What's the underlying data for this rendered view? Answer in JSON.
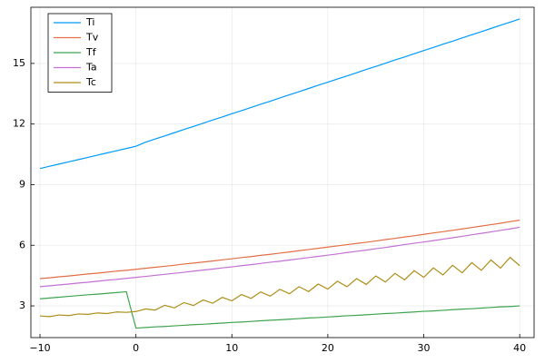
{
  "chart_data": {
    "type": "line",
    "x": [
      -10,
      -9,
      -8,
      -7,
      -6,
      -5,
      -4,
      -3,
      -2,
      -1,
      0,
      1,
      2,
      3,
      4,
      5,
      6,
      7,
      8,
      9,
      10,
      11,
      12,
      13,
      14,
      15,
      16,
      17,
      18,
      19,
      20,
      21,
      22,
      23,
      24,
      25,
      26,
      27,
      28,
      29,
      30,
      31,
      32,
      33,
      34,
      35,
      36,
      37,
      38,
      39,
      40
    ],
    "series": [
      {
        "name": "Ti",
        "color": "#009af9",
        "values": [
          9.8,
          9.91,
          10.02,
          10.13,
          10.24,
          10.35,
          10.46,
          10.57,
          10.68,
          10.79,
          10.9,
          11.1,
          11.26,
          11.41,
          11.57,
          11.73,
          11.88,
          12.04,
          12.2,
          12.35,
          12.51,
          12.66,
          12.82,
          12.98,
          13.13,
          13.29,
          13.45,
          13.6,
          13.76,
          13.92,
          14.07,
          14.23,
          14.38,
          14.54,
          14.7,
          14.85,
          15.01,
          15.17,
          15.32,
          15.48,
          15.64,
          15.79,
          15.95,
          16.1,
          16.26,
          16.42,
          16.57,
          16.73,
          16.89,
          17.04,
          17.2
        ]
      },
      {
        "name": "Tv",
        "color": "#e26f46",
        "values": [
          4.35,
          4.39,
          4.44,
          4.48,
          4.53,
          4.58,
          4.62,
          4.67,
          4.72,
          4.76,
          4.81,
          4.86,
          4.91,
          4.96,
          5.01,
          5.07,
          5.12,
          5.17,
          5.22,
          5.28,
          5.33,
          5.39,
          5.44,
          5.5,
          5.55,
          5.61,
          5.67,
          5.73,
          5.79,
          5.85,
          5.91,
          5.97,
          6.03,
          6.09,
          6.15,
          6.21,
          6.28,
          6.34,
          6.41,
          6.47,
          6.54,
          6.61,
          6.67,
          6.74,
          6.81,
          6.88,
          6.95,
          7.02,
          7.09,
          7.17,
          7.24
        ]
      },
      {
        "name": "Tf",
        "color": "#3ea44e",
        "values": [
          3.35,
          3.39,
          3.43,
          3.47,
          3.51,
          3.55,
          3.58,
          3.62,
          3.66,
          3.7,
          1.9,
          1.93,
          1.96,
          1.98,
          2.01,
          2.04,
          2.07,
          2.09,
          2.12,
          2.15,
          2.18,
          2.2,
          2.23,
          2.26,
          2.29,
          2.31,
          2.34,
          2.37,
          2.4,
          2.42,
          2.45,
          2.48,
          2.51,
          2.53,
          2.56,
          2.59,
          2.62,
          2.64,
          2.67,
          2.7,
          2.73,
          2.75,
          2.78,
          2.81,
          2.84,
          2.86,
          2.89,
          2.92,
          2.95,
          2.97,
          3.0
        ]
      },
      {
        "name": "Ta",
        "color": "#c271d2",
        "values": [
          3.95,
          3.99,
          4.04,
          4.08,
          4.13,
          4.17,
          4.22,
          4.27,
          4.31,
          4.36,
          4.41,
          4.46,
          4.51,
          4.56,
          4.61,
          4.66,
          4.72,
          4.77,
          4.82,
          4.88,
          4.93,
          4.99,
          5.04,
          5.1,
          5.16,
          5.21,
          5.27,
          5.33,
          5.39,
          5.45,
          5.51,
          5.57,
          5.64,
          5.7,
          5.76,
          5.83,
          5.89,
          5.96,
          6.03,
          6.1,
          6.16,
          6.23,
          6.3,
          6.37,
          6.44,
          6.52,
          6.59,
          6.66,
          6.74,
          6.81,
          6.89
        ]
      },
      {
        "name": "Tc",
        "color": "#ac8e18",
        "values": [
          2.5,
          2.47,
          2.55,
          2.52,
          2.6,
          2.58,
          2.65,
          2.62,
          2.7,
          2.68,
          2.72,
          2.85,
          2.79,
          3.03,
          2.9,
          3.16,
          3.02,
          3.29,
          3.13,
          3.42,
          3.25,
          3.56,
          3.37,
          3.69,
          3.48,
          3.82,
          3.6,
          3.95,
          3.71,
          4.08,
          3.83,
          4.22,
          3.95,
          4.35,
          4.06,
          4.48,
          4.18,
          4.61,
          4.29,
          4.74,
          4.41,
          4.88,
          4.53,
          5.01,
          4.64,
          5.14,
          4.76,
          5.27,
          4.87,
          5.4,
          4.99
        ]
      }
    ],
    "xlim": [
      -10.95,
      41.5
    ],
    "ylim": [
      1.43,
      17.78
    ],
    "xticks": [
      {
        "value": -10,
        "label": "−10"
      },
      0,
      10,
      20,
      30,
      40
    ],
    "yticks": [
      3,
      6,
      9,
      12,
      15
    ],
    "grid": true,
    "legend": "top-left"
  }
}
